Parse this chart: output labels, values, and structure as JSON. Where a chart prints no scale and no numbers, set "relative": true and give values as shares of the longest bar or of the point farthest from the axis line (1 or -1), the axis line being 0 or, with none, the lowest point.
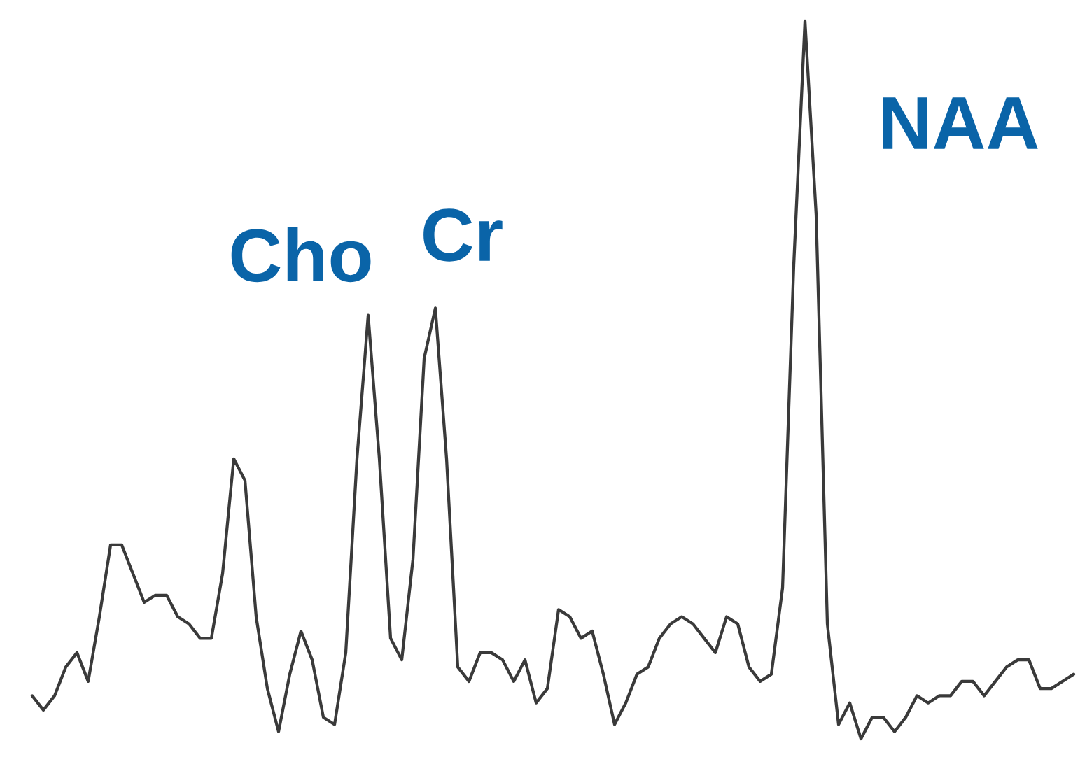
{
  "chart_data": {
    "type": "line",
    "relative": true,
    "color": "#3a3a3a",
    "categories": [
      null,
      null,
      null,
      null,
      null,
      null,
      null,
      null,
      null,
      null,
      null,
      null,
      null,
      null,
      null,
      null,
      null,
      null,
      null,
      null,
      null,
      null,
      null,
      null,
      null,
      null,
      null,
      null,
      null,
      null,
      null,
      null,
      null,
      null,
      null,
      null,
      null,
      null,
      null,
      null,
      null,
      null,
      null,
      null,
      null,
      null,
      null,
      null,
      null,
      null,
      null,
      null,
      null,
      null,
      null,
      null,
      null,
      null,
      null,
      null,
      null,
      null,
      null,
      null,
      null,
      null,
      null,
      null,
      null,
      null,
      null,
      null,
      null,
      null,
      null,
      null,
      null,
      null,
      null,
      null,
      null,
      null,
      null,
      null,
      null,
      null,
      null,
      null,
      null,
      null,
      null,
      null,
      null,
      null
    ],
    "values": [
      0.06,
      0.04,
      0.06,
      0.1,
      0.12,
      0.08,
      0.17,
      0.27,
      0.27,
      0.23,
      0.19,
      0.2,
      0.2,
      0.17,
      0.16,
      0.14,
      0.14,
      0.23,
      0.39,
      0.36,
      0.17,
      0.07,
      0.01,
      0.09,
      0.15,
      0.11,
      0.03,
      0.02,
      0.12,
      0.39,
      0.59,
      0.39,
      0.14,
      0.11,
      0.25,
      0.53,
      0.6,
      0.39,
      0.1,
      0.08,
      0.12,
      0.12,
      0.11,
      0.08,
      0.11,
      0.05,
      0.07,
      0.18,
      0.17,
      0.14,
      0.15,
      0.09,
      0.02,
      0.05,
      0.09,
      0.1,
      0.14,
      0.16,
      0.17,
      0.16,
      0.14,
      0.12,
      0.17,
      0.16,
      0.1,
      0.08,
      0.09,
      0.21,
      0.66,
      1,
      0.73,
      0.16,
      0.02,
      0.05,
      0,
      0.03,
      0.03,
      0.01,
      0.03,
      0.06,
      0.05,
      0.06,
      0.06,
      0.08,
      0.08,
      0.06,
      0.08,
      0.1,
      0.11,
      0.11,
      0.07,
      0.07,
      0.08,
      0.09
    ],
    "annotations": [
      "Cho",
      "Cr",
      "NAA"
    ]
  }
}
